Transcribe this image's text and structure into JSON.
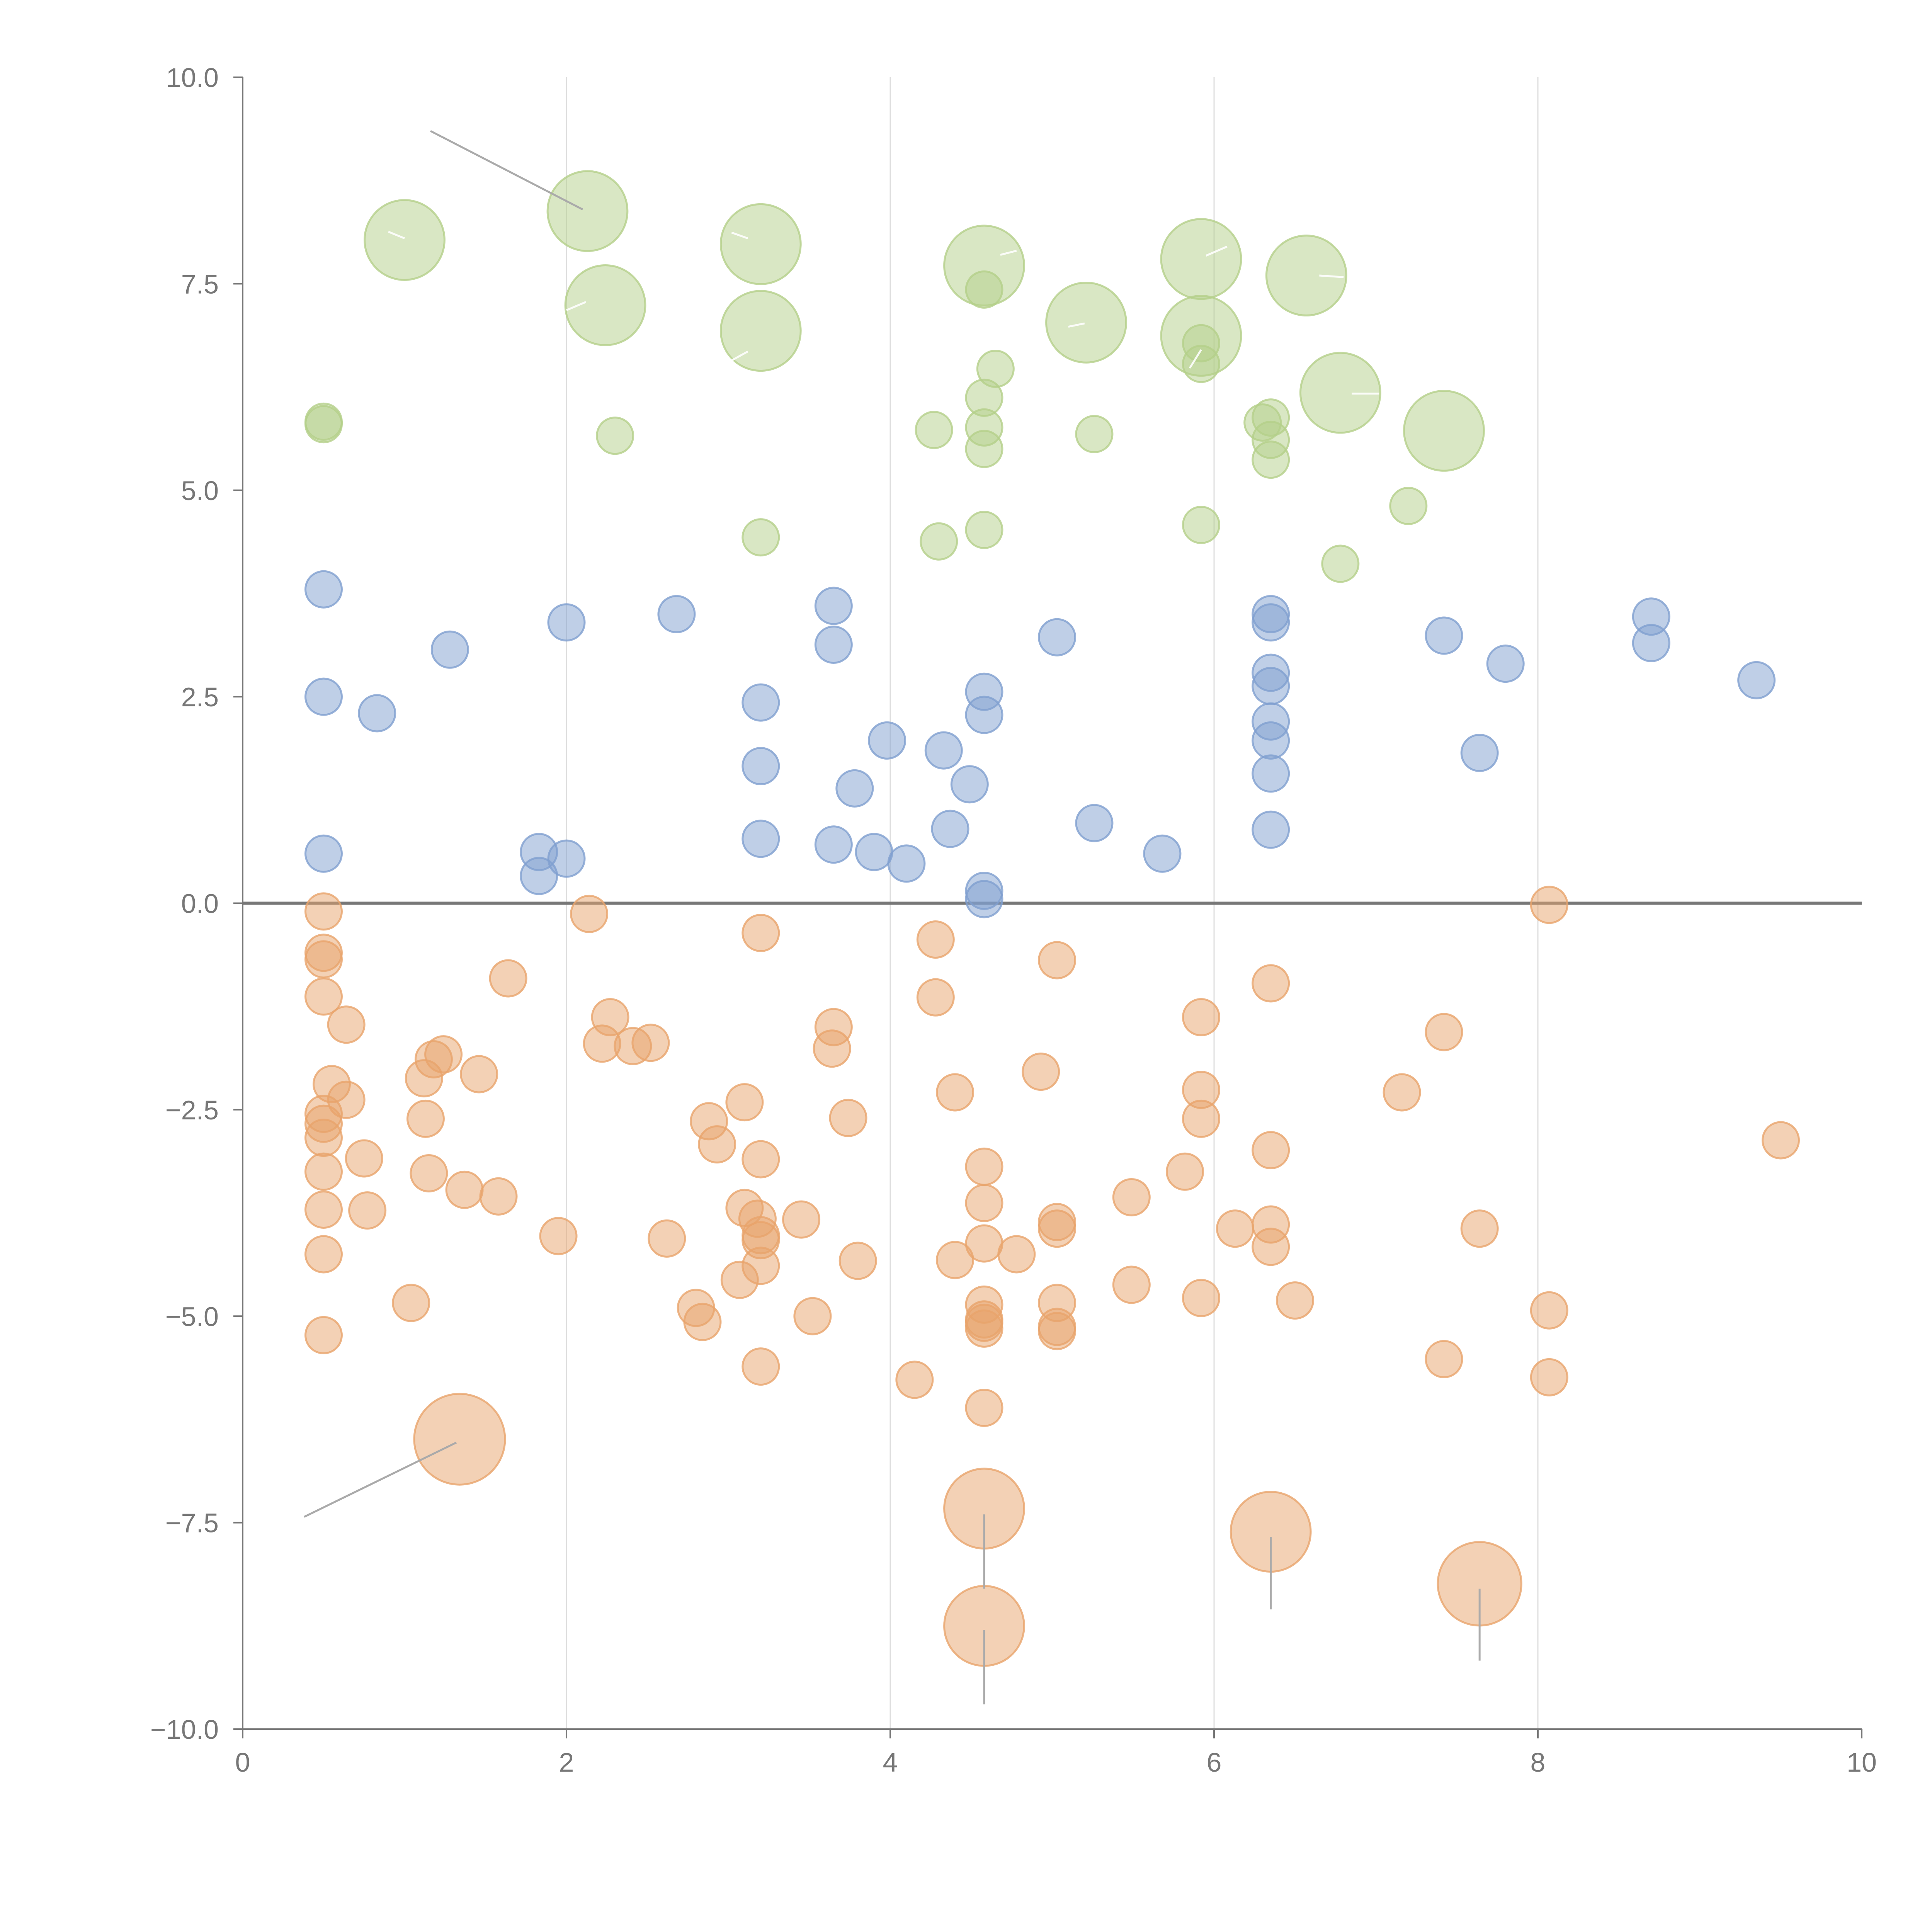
{
  "colors": {
    "blue": "#7f9fd0",
    "orange": "#e8a46c",
    "green": "#b4cf8a",
    "axis": "#777777",
    "grid": "#dddddd"
  },
  "chart_data": {
    "type": "scatter",
    "title": "",
    "xlabel": "",
    "ylabel": "",
    "xlim": [
      0,
      10
    ],
    "ylim": [
      -10,
      10
    ],
    "x_ticks": [
      "0",
      "2",
      "4",
      "6",
      "8",
      "10"
    ],
    "y_ticks": [
      "10.0",
      "7.5",
      "5.0",
      "2.5",
      "0.0",
      "−2.5",
      "−5.0",
      "−7.5",
      "−10.0"
    ],
    "grid": "vertical lines at x = 2, 4, 6, 8; horizontal reference line at y = 0",
    "series": [
      {
        "color": "blue",
        "points": [
          [
            0.5,
            3.8,
            1
          ],
          [
            0.5,
            2.5,
            1
          ],
          [
            0.5,
            0.6,
            1
          ],
          [
            0.83,
            2.3,
            1
          ],
          [
            1.28,
            3.07,
            1
          ],
          [
            1.83,
            0.62,
            1
          ],
          [
            1.83,
            0.33,
            1
          ],
          [
            2.0,
            3.4,
            1
          ],
          [
            2.0,
            0.54,
            1
          ],
          [
            2.68,
            3.5,
            1
          ],
          [
            3.2,
            2.43,
            1
          ],
          [
            3.2,
            1.66,
            1
          ],
          [
            3.2,
            0.78,
            1
          ],
          [
            3.65,
            3.6,
            1
          ],
          [
            3.65,
            3.13,
            1
          ],
          [
            3.65,
            0.71,
            1
          ],
          [
            3.78,
            1.39,
            1
          ],
          [
            3.9,
            0.62,
            1
          ],
          [
            3.98,
            1.97,
            1
          ],
          [
            4.1,
            0.48,
            1
          ],
          [
            4.33,
            1.85,
            1
          ],
          [
            4.37,
            0.9,
            1
          ],
          [
            4.49,
            1.44,
            1
          ],
          [
            4.58,
            2.56,
            1
          ],
          [
            4.58,
            2.28,
            1
          ],
          [
            4.58,
            0.15,
            1
          ],
          [
            4.58,
            0.05,
            1
          ],
          [
            5.03,
            3.22,
            1
          ],
          [
            5.26,
            0.97,
            1
          ],
          [
            5.68,
            0.6,
            1
          ],
          [
            6.35,
            3.5,
            1
          ],
          [
            6.35,
            3.4,
            1
          ],
          [
            6.35,
            2.79,
            1
          ],
          [
            6.35,
            2.63,
            1
          ],
          [
            6.35,
            2.2,
            1
          ],
          [
            6.35,
            1.97,
            1
          ],
          [
            6.35,
            1.57,
            1
          ],
          [
            6.35,
            0.89,
            1
          ],
          [
            7.42,
            3.24,
            1
          ],
          [
            7.64,
            1.82,
            1
          ],
          [
            7.8,
            2.9,
            1
          ],
          [
            8.7,
            3.47,
            1
          ],
          [
            8.7,
            3.15,
            1
          ],
          [
            9.35,
            2.7,
            1
          ]
        ]
      },
      {
        "color": "orange",
        "points": [
          [
            0.5,
            -0.1,
            1
          ],
          [
            0.5,
            -0.6,
            1
          ],
          [
            0.5,
            -0.68,
            1
          ],
          [
            0.5,
            -1.13,
            1
          ],
          [
            0.5,
            -2.55,
            1
          ],
          [
            0.5,
            -2.67,
            1
          ],
          [
            0.5,
            -2.84,
            1
          ],
          [
            0.5,
            -3.25,
            1
          ],
          [
            0.5,
            -3.71,
            1
          ],
          [
            0.5,
            -4.25,
            1
          ],
          [
            0.5,
            -5.23,
            1
          ],
          [
            0.55,
            -2.19,
            1
          ],
          [
            0.64,
            -1.47,
            1
          ],
          [
            0.64,
            -2.38,
            1
          ],
          [
            0.75,
            -3.09,
            1
          ],
          [
            0.77,
            -3.72,
            1
          ],
          [
            1.04,
            -4.84,
            1
          ],
          [
            1.12,
            -2.12,
            1
          ],
          [
            1.13,
            -2.61,
            1
          ],
          [
            1.15,
            -3.27,
            1
          ],
          [
            1.18,
            -1.89,
            1
          ],
          [
            1.24,
            -1.83,
            1
          ],
          [
            1.37,
            -3.47,
            1
          ],
          [
            1.46,
            -2.07,
            1
          ],
          [
            1.58,
            -3.55,
            1
          ],
          [
            1.64,
            -0.91,
            1
          ],
          [
            1.95,
            -4.03,
            1
          ],
          [
            2.14,
            -0.13,
            1
          ],
          [
            2.22,
            -1.7,
            1
          ],
          [
            2.27,
            -1.38,
            1
          ],
          [
            2.41,
            -1.73,
            1
          ],
          [
            2.52,
            -1.69,
            1
          ],
          [
            2.62,
            -4.06,
            1
          ],
          [
            2.8,
            -4.9,
            1
          ],
          [
            2.84,
            -5.07,
            1
          ],
          [
            2.88,
            -2.64,
            1
          ],
          [
            2.93,
            -2.92,
            1
          ],
          [
            3.07,
            -4.56,
            1
          ],
          [
            3.1,
            -2.41,
            1
          ],
          [
            3.1,
            -3.69,
            1
          ],
          [
            3.18,
            -3.82,
            1
          ],
          [
            3.2,
            -0.36,
            1
          ],
          [
            3.2,
            -3.1,
            1
          ],
          [
            3.2,
            -4.02,
            1
          ],
          [
            3.2,
            -4.08,
            1
          ],
          [
            3.2,
            -4.39,
            1
          ],
          [
            3.2,
            -5.61,
            1
          ],
          [
            3.45,
            -3.83,
            1
          ],
          [
            3.52,
            -5.0,
            1
          ],
          [
            3.65,
            -1.5,
            1
          ],
          [
            3.64,
            -1.76,
            1
          ],
          [
            3.74,
            -2.6,
            1
          ],
          [
            3.8,
            -4.33,
            1
          ],
          [
            4.15,
            -5.77,
            1
          ],
          [
            4.28,
            -0.44,
            1
          ],
          [
            4.28,
            -1.14,
            1
          ],
          [
            4.4,
            -2.29,
            1
          ],
          [
            4.4,
            -4.32,
            1
          ],
          [
            4.58,
            -3.19,
            1
          ],
          [
            4.58,
            -3.63,
            1
          ],
          [
            4.58,
            -4.12,
            1
          ],
          [
            4.58,
            -4.86,
            1
          ],
          [
            4.58,
            -5.04,
            1
          ],
          [
            4.58,
            -5.08,
            1
          ],
          [
            4.58,
            -5.15,
            1
          ],
          [
            4.58,
            -6.11,
            1
          ],
          [
            4.78,
            -4.25,
            1
          ],
          [
            4.93,
            -2.04,
            1
          ],
          [
            5.03,
            -0.69,
            1
          ],
          [
            5.03,
            -3.86,
            1
          ],
          [
            5.03,
            -3.94,
            1
          ],
          [
            5.03,
            -4.84,
            1
          ],
          [
            5.03,
            -5.13,
            1
          ],
          [
            5.03,
            -5.18,
            1
          ],
          [
            5.49,
            -3.56,
            1
          ],
          [
            5.49,
            -4.62,
            1
          ],
          [
            5.82,
            -3.25,
            1
          ],
          [
            5.92,
            -1.38,
            1
          ],
          [
            5.92,
            -2.26,
            1
          ],
          [
            5.92,
            -2.61,
            1
          ],
          [
            5.92,
            -4.78,
            1
          ],
          [
            6.13,
            -3.94,
            1
          ],
          [
            6.35,
            -0.97,
            1
          ],
          [
            6.35,
            -2.99,
            1
          ],
          [
            6.35,
            -3.89,
            1
          ],
          [
            6.35,
            -4.16,
            1
          ],
          [
            6.5,
            -4.81,
            1
          ],
          [
            7.16,
            -2.29,
            1
          ],
          [
            7.42,
            -1.56,
            1
          ],
          [
            7.42,
            -5.52,
            1
          ],
          [
            7.64,
            -3.94,
            1
          ],
          [
            8.07,
            -0.02,
            1
          ],
          [
            8.07,
            -4.93,
            1
          ],
          [
            8.07,
            -5.74,
            1
          ],
          [
            9.5,
            -2.87,
            1
          ],
          [
            1.34,
            -6.49,
            2.5
          ],
          [
            4.58,
            -7.33,
            2.2
          ],
          [
            4.58,
            -8.75,
            2.2
          ],
          [
            6.35,
            -7.61,
            2.2
          ],
          [
            7.64,
            -8.24,
            2.3
          ]
        ]
      },
      {
        "color": "green",
        "points": [
          [
            0.5,
            5.83,
            1
          ],
          [
            0.5,
            5.8,
            1
          ],
          [
            2.3,
            5.66,
            1
          ],
          [
            3.2,
            4.43,
            1
          ],
          [
            4.27,
            5.73,
            1
          ],
          [
            4.3,
            4.38,
            1
          ],
          [
            4.58,
            7.43,
            1
          ],
          [
            4.58,
            6.12,
            1
          ],
          [
            4.58,
            5.76,
            1
          ],
          [
            4.58,
            5.5,
            1
          ],
          [
            4.58,
            4.52,
            1
          ],
          [
            4.65,
            6.47,
            1
          ],
          [
            5.26,
            5.68,
            1
          ],
          [
            5.92,
            6.78,
            1
          ],
          [
            5.92,
            6.53,
            1
          ],
          [
            5.92,
            4.58,
            1
          ],
          [
            6.3,
            5.82,
            1
          ],
          [
            6.35,
            5.88,
            1
          ],
          [
            6.35,
            5.61,
            1
          ],
          [
            6.35,
            5.37,
            1
          ],
          [
            6.78,
            4.11,
            1
          ],
          [
            7.2,
            4.81,
            1
          ],
          [
            1.0,
            8.03,
            2.2
          ],
          [
            2.13,
            8.38,
            2.2
          ],
          [
            2.24,
            7.24,
            2.2
          ],
          [
            3.2,
            7.98,
            2.2
          ],
          [
            3.2,
            6.93,
            2.2
          ],
          [
            4.58,
            7.72,
            2.2
          ],
          [
            5.21,
            7.03,
            2.2
          ],
          [
            5.92,
            7.8,
            2.2
          ],
          [
            5.92,
            6.87,
            2.2
          ],
          [
            6.57,
            7.6,
            2.2
          ],
          [
            6.78,
            6.18,
            2.2
          ],
          [
            7.42,
            5.72,
            2.2
          ]
        ]
      }
    ],
    "leaders": [
      [
        1.16,
        9.35,
        2.1,
        8.4
      ],
      [
        0.38,
        -7.43,
        1.32,
        -6.53
      ],
      [
        4.58,
        -7.4,
        4.58,
        -8.3
      ],
      [
        4.58,
        -8.8,
        4.58,
        -9.7
      ],
      [
        6.35,
        -7.67,
        6.35,
        -8.55
      ],
      [
        7.64,
        -8.3,
        7.64,
        -9.17
      ]
    ],
    "light_leaders": [
      [
        0.9,
        8.13,
        1.0,
        8.05
      ],
      [
        2.12,
        7.28,
        2.0,
        7.18
      ],
      [
        3.02,
        8.12,
        3.12,
        8.05
      ],
      [
        3.12,
        6.68,
        3.0,
        6.55
      ],
      [
        4.68,
        7.85,
        4.78,
        7.9
      ],
      [
        5.1,
        6.98,
        5.2,
        7.02
      ],
      [
        5.95,
        7.84,
        6.08,
        7.95
      ],
      [
        5.92,
        6.7,
        5.85,
        6.48
      ],
      [
        6.65,
        7.6,
        6.8,
        7.58
      ],
      [
        6.85,
        6.17,
        7.02,
        6.17
      ]
    ]
  }
}
